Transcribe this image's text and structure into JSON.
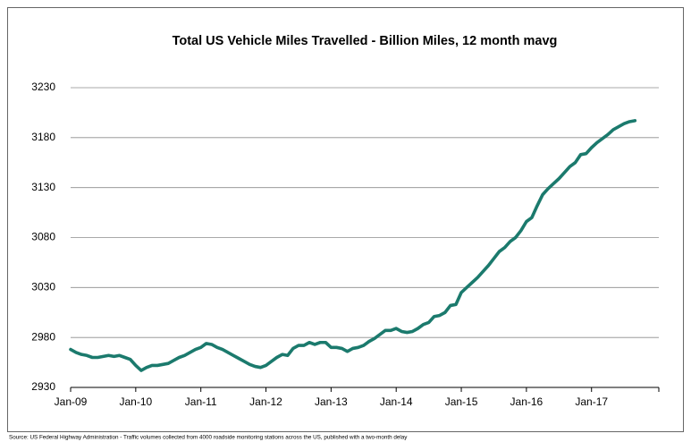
{
  "chart_data": {
    "type": "line",
    "title": "Total US Vehicle Miles Travelled - Billion Miles, 12 month mavg",
    "source": "Source:  US Federal Highway Administration  - Traffic volumes  collected from 4000 roadside monitoring  stations across the US, published with a two-month  delay",
    "categories": [
      "Jan-09",
      null,
      null,
      null,
      null,
      null,
      null,
      null,
      null,
      null,
      null,
      null,
      "Jan-10",
      null,
      null,
      null,
      null,
      null,
      null,
      null,
      null,
      null,
      null,
      null,
      "Jan-11",
      null,
      null,
      null,
      null,
      null,
      null,
      null,
      null,
      null,
      null,
      null,
      "Jan-12",
      null,
      null,
      null,
      null,
      null,
      null,
      null,
      null,
      null,
      null,
      null,
      "Jan-13",
      null,
      null,
      null,
      null,
      null,
      null,
      null,
      null,
      null,
      null,
      null,
      "Jan-14",
      null,
      null,
      null,
      null,
      null,
      null,
      null,
      null,
      null,
      null,
      null,
      "Jan-15",
      null,
      null,
      null,
      null,
      null,
      null,
      null,
      null,
      null,
      null,
      null,
      "Jan-16",
      null,
      null,
      null,
      null,
      null,
      null,
      null,
      null,
      null,
      null,
      null,
      "Jan-17",
      null,
      null,
      null,
      null,
      null,
      null,
      null,
      null
    ],
    "values": [
      2968,
      2965,
      2963,
      2962,
      2960,
      2960,
      2961,
      2962,
      2961,
      2962,
      2960,
      2958,
      2952,
      2947,
      2950,
      2952,
      2952,
      2953,
      2954,
      2957,
      2960,
      2962,
      2965,
      2968,
      2970,
      2974,
      2973,
      2970,
      2968,
      2965,
      2962,
      2959,
      2956,
      2953,
      2951,
      2950,
      2952,
      2956,
      2960,
      2963,
      2962,
      2969,
      2972,
      2972,
      2975,
      2973,
      2975,
      2975,
      2970,
      2970,
      2969,
      2966,
      2969,
      2970,
      2972,
      2976,
      2979,
      2983,
      2987,
      2987,
      2989,
      2986,
      2985,
      2986,
      2989,
      2993,
      2995,
      3001,
      3002,
      3005,
      3012,
      3013,
      3025,
      3030,
      3035,
      3040,
      3046,
      3052,
      3059,
      3066,
      3070,
      3076,
      3080,
      3087,
      3096,
      3100,
      3112,
      3123,
      3129,
      3134,
      3139,
      3145,
      3151,
      3155,
      3163,
      3164,
      3170,
      3175,
      3179,
      3183,
      3188,
      3191,
      3194,
      3196,
      3197
    ],
    "color": "#1b7a6d",
    "ylim": [
      2930,
      3230
    ],
    "yticks": [
      2930,
      2980,
      3030,
      3080,
      3130,
      3180,
      3230
    ],
    "grid": true
  }
}
